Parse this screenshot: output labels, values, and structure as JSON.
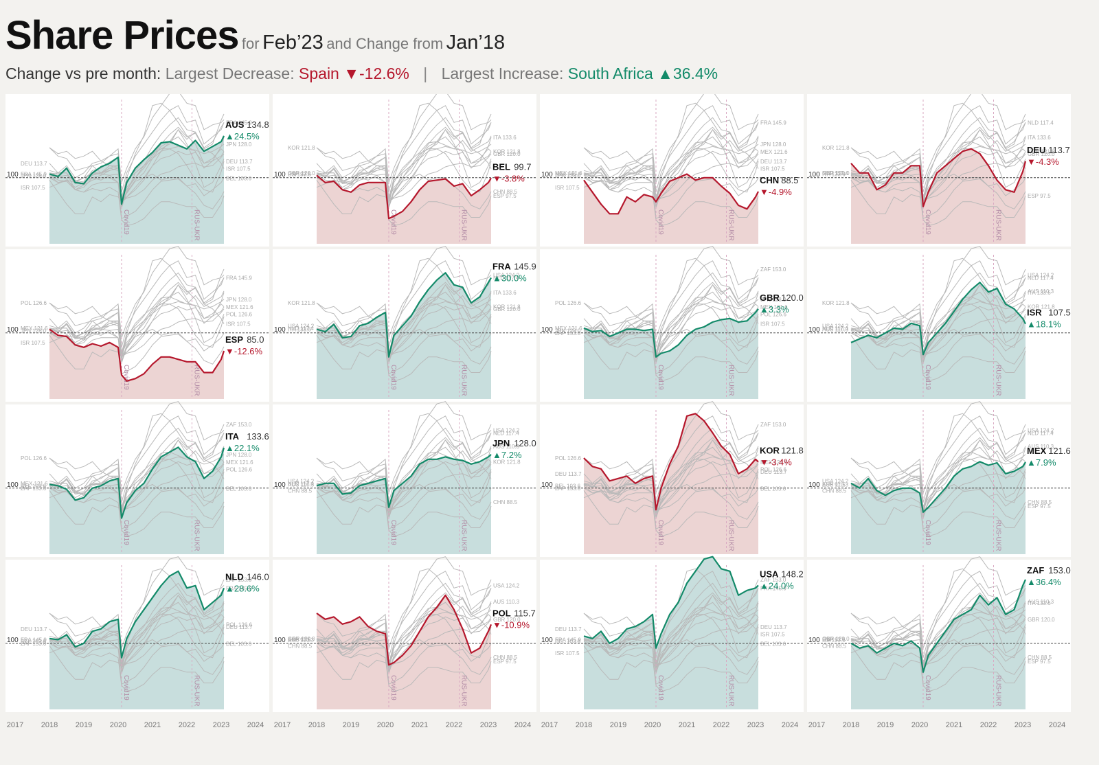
{
  "header": {
    "title": "Share Prices",
    "for_label": "for",
    "period": "Feb’23",
    "change_label": "and Change from",
    "base_period": "Jan’18"
  },
  "subtitle": {
    "lead": "Change vs pre month:",
    "decrease_label": "Largest Decrease:",
    "decrease_value": "Spain ▼-12.6%",
    "separator": "|",
    "increase_label": "Largest Increase:",
    "increase_value": "South Africa ▲36.4%"
  },
  "colors": {
    "positive_line": "#138a69",
    "positive_fill": "#c8dedd",
    "negative_line": "#b5172c",
    "negative_fill": "#ecd4d3",
    "other_lines": "#b9b9b9",
    "panel_bg": "#ffffff",
    "page_bg": "#f3f2ef"
  },
  "chart_data": {
    "type": "line",
    "layout": "small multiples 4x4",
    "x_ticks": [
      "2017",
      "2018",
      "2019",
      "2020",
      "2021",
      "2022",
      "2023",
      "2024"
    ],
    "xlim": [
      2017,
      2024
    ],
    "baseline": 100,
    "baseline_label": "100",
    "ylim": [
      45,
      165
    ],
    "events": [
      {
        "label": "Covid19",
        "x": 2020.1
      },
      {
        "label": "RUS-UKR",
        "x": 2022.15
      }
    ],
    "x": [
      2018.0,
      2018.25,
      2018.5,
      2018.75,
      2019.0,
      2019.25,
      2019.5,
      2019.75,
      2020.0,
      2020.1,
      2020.25,
      2020.5,
      2020.75,
      2021.0,
      2021.25,
      2021.5,
      2021.75,
      2022.0,
      2022.25,
      2022.5,
      2022.75,
      2023.0,
      2023.08
    ],
    "series": [
      {
        "code": "AUS",
        "value": "134.8",
        "change": "▲24.5%",
        "direction": "up",
        "ref_label": "AUS 110.3",
        "values": [
          103,
          101,
          108,
          96,
          95,
          104,
          109,
          112,
          117,
          78,
          96,
          108,
          115,
          121,
          129,
          130,
          127,
          124,
          131,
          122,
          126,
          130,
          134.8
        ]
      },
      {
        "code": "BEL",
        "value": "99.7",
        "change": "▼-3.8%",
        "direction": "down",
        "ref_label": "BEL 103.6",
        "values": [
          102,
          96,
          97,
          90,
          88,
          94,
          96,
          96,
          96,
          66,
          68,
          72,
          80,
          90,
          97,
          98,
          99,
          93,
          95,
          85,
          90,
          96,
          99.7
        ]
      },
      {
        "code": "CHN",
        "value": "88.5",
        "change": "▼-4.9%",
        "direction": "down",
        "ref_label": "CHN 88.5",
        "values": [
          98,
          88,
          78,
          70,
          70,
          84,
          80,
          86,
          84,
          80,
          87,
          97,
          100,
          103,
          98,
          100,
          100,
          93,
          87,
          77,
          74,
          84,
          88.5
        ]
      },
      {
        "code": "DEU",
        "value": "113.7",
        "change": "▼-4.3%",
        "direction": "down",
        "ref_label": "DEU 113.7",
        "values": [
          112,
          104,
          104,
          90,
          94,
          104,
          104,
          110,
          110,
          76,
          88,
          104,
          110,
          116,
          122,
          124,
          120,
          110,
          98,
          90,
          88,
          105,
          113.7
        ]
      },
      {
        "code": "ESP",
        "value": "85.0",
        "change": "▼-12.6%",
        "direction": "down",
        "ref_label": "ESP 97.5",
        "values": [
          103,
          98,
          97,
          90,
          88,
          91,
          89,
          92,
          88,
          65,
          60,
          62,
          66,
          74,
          80,
          80,
          78,
          76,
          76,
          67,
          67,
          78,
          85.0
        ]
      },
      {
        "code": "FRA",
        "value": "145.9",
        "change": "▲30.0%",
        "direction": "up",
        "ref_label": "FRA 145.9",
        "values": [
          103,
          101,
          107,
          96,
          97,
          106,
          108,
          113,
          117,
          80,
          98,
          106,
          114,
          126,
          136,
          144,
          150,
          140,
          138,
          125,
          130,
          142,
          145.9
        ]
      },
      {
        "code": "GBR",
        "value": "120.0",
        "change": "▲3.3%",
        "direction": "up",
        "ref_label": "GBR 120.0",
        "values": [
          104,
          101,
          102,
          97,
          100,
          103,
          103,
          102,
          103,
          80,
          83,
          85,
          90,
          98,
          103,
          105,
          109,
          111,
          112,
          109,
          110,
          117,
          120.0
        ]
      },
      {
        "code": "ISR",
        "value": "107.5",
        "change": "▲18.1%",
        "direction": "up",
        "ref_label": "ISR 107.5",
        "values": [
          92,
          95,
          98,
          96,
          100,
          104,
          103,
          108,
          106,
          82,
          92,
          100,
          108,
          118,
          128,
          136,
          142,
          134,
          137,
          124,
          120,
          112,
          107.5
        ]
      },
      {
        "code": "ITA",
        "value": "133.6",
        "change": "▲22.1%",
        "direction": "up",
        "ref_label": "ITA 133.6",
        "values": [
          103,
          102,
          99,
          90,
          92,
          100,
          102,
          106,
          108,
          75,
          88,
          98,
          104,
          116,
          126,
          130,
          134,
          126,
          122,
          108,
          114,
          126,
          133.6
        ]
      },
      {
        "code": "JPN",
        "value": "128.0",
        "change": "▲7.2%",
        "direction": "up",
        "ref_label": "JPN 128.0",
        "values": [
          102,
          104,
          104,
          95,
          96,
          102,
          104,
          106,
          108,
          84,
          98,
          104,
          110,
          120,
          124,
          124,
          126,
          124,
          123,
          120,
          122,
          126,
          128.0
        ]
      },
      {
        "code": "KOR",
        "value": "121.8",
        "change": "▼-3.4%",
        "direction": "down",
        "ref_label": "KOR 121.8",
        "values": [
          125,
          118,
          116,
          106,
          108,
          110,
          104,
          108,
          110,
          82,
          100,
          120,
          135,
          160,
          162,
          156,
          146,
          135,
          128,
          112,
          116,
          124,
          121.8
        ]
      },
      {
        "code": "MEX",
        "value": "121.6",
        "change": "▲7.9%",
        "direction": "up",
        "ref_label": "MEX 121.6",
        "values": [
          104,
          100,
          108,
          98,
          94,
          98,
          100,
          100,
          96,
          80,
          84,
          92,
          100,
          110,
          116,
          118,
          122,
          119,
          121,
          112,
          114,
          118,
          121.6
        ]
      },
      {
        "code": "NLD",
        "value": "146.0",
        "change": "▲28.6%",
        "direction": "up",
        "ref_label": "NLD 117.4",
        "values": [
          104,
          103,
          107,
          97,
          100,
          110,
          112,
          118,
          120,
          88,
          104,
          118,
          128,
          138,
          148,
          156,
          160,
          146,
          148,
          128,
          134,
          140,
          146.0
        ]
      },
      {
        "code": "POL",
        "value": "115.7",
        "change": "▼-10.9%",
        "direction": "down",
        "ref_label": "POL 126.6",
        "values": [
          125,
          120,
          122,
          116,
          118,
          122,
          114,
          110,
          108,
          82,
          84,
          90,
          98,
          110,
          122,
          130,
          140,
          128,
          112,
          92,
          96,
          110,
          115.7
        ]
      },
      {
        "code": "USA",
        "value": "148.2",
        "change": "▲24.0%",
        "direction": "up",
        "ref_label": "USA 124.2",
        "values": [
          106,
          104,
          110,
          100,
          104,
          112,
          114,
          118,
          124,
          96,
          108,
          124,
          134,
          150,
          160,
          170,
          172,
          162,
          160,
          140,
          144,
          146,
          148.2
        ]
      },
      {
        "code": "ZAF",
        "value": "153.0",
        "change": "▲36.4%",
        "direction": "up",
        "ref_label": "ZAF 153.0",
        "values": [
          100,
          96,
          98,
          92,
          96,
          100,
          98,
          102,
          96,
          76,
          90,
          100,
          110,
          120,
          124,
          128,
          140,
          132,
          138,
          124,
          128,
          148,
          153.0
        ]
      }
    ]
  }
}
